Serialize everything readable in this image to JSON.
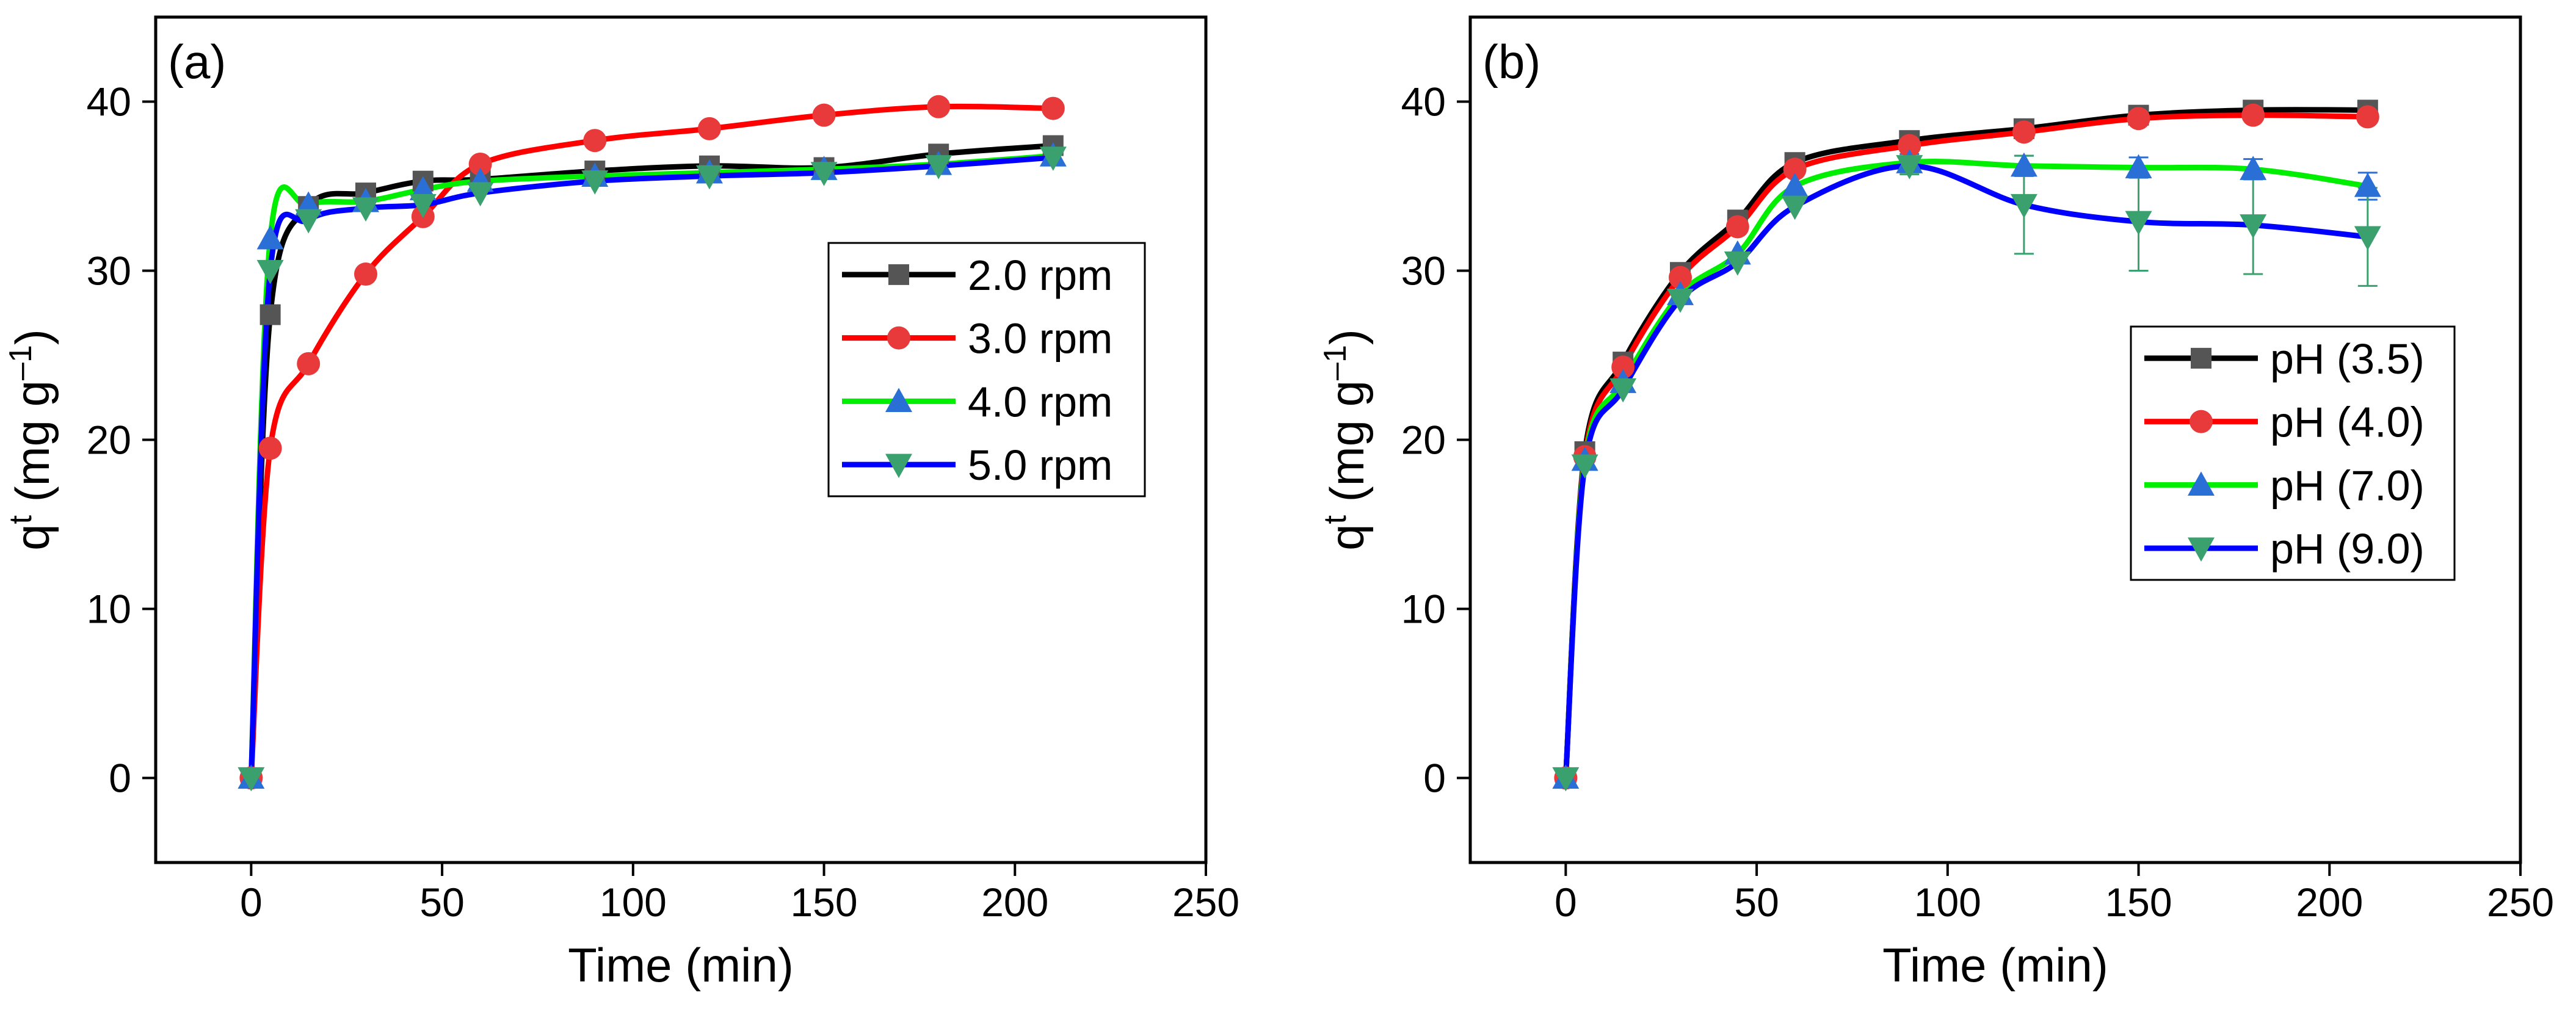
{
  "chart_data": [
    {
      "type": "line",
      "panel_label": "(a)",
      "xlabel": "Time (min)",
      "ylabel_base": "q",
      "ylabel_sup": "t",
      "ylabel_unit_prefix": " (mg g",
      "ylabel_unit_sup": "–1",
      "ylabel_unit_suffix": ")",
      "xlim": [
        -25,
        250
      ],
      "ylim": [
        -5,
        45
      ],
      "xticks": [
        0,
        50,
        100,
        150,
        200,
        250
      ],
      "yticks": [
        0,
        10,
        20,
        30,
        40
      ],
      "legend_position": "right-middle",
      "x": [
        0,
        5,
        15,
        30,
        45,
        60,
        90,
        120,
        150,
        180,
        210
      ],
      "series": [
        {
          "name": "2.0 rpm",
          "color": "#000000",
          "marker_color": "#555555",
          "marker": "square",
          "values": [
            0,
            27.4,
            33.8,
            34.6,
            35.3,
            35.4,
            35.9,
            36.2,
            36.1,
            36.9,
            37.4
          ]
        },
        {
          "name": "3.0 rpm",
          "color": "#ff0000",
          "marker_color": "#e83a3a",
          "marker": "circle",
          "values": [
            0,
            19.5,
            24.5,
            29.8,
            33.2,
            36.3,
            37.7,
            38.4,
            39.2,
            39.7,
            39.6
          ]
        },
        {
          "name": "4.0 rpm",
          "color": "#00ee00",
          "marker_color": "#2a6fd6",
          "marker": "triangle-up",
          "values": [
            0,
            31.9,
            33.9,
            34.1,
            34.8,
            35.3,
            35.6,
            35.8,
            36.0,
            36.3,
            36.8
          ]
        },
        {
          "name": "5.0 rpm",
          "color": "#0000ff",
          "marker_color": "#3aa06e",
          "marker": "triangle-down",
          "values": [
            0,
            30.0,
            33.0,
            33.7,
            33.9,
            34.6,
            35.3,
            35.6,
            35.8,
            36.2,
            36.7
          ]
        }
      ]
    },
    {
      "type": "line",
      "panel_label": "(b)",
      "xlabel": "Time (min)",
      "ylabel_base": "q",
      "ylabel_sup": "t",
      "ylabel_unit_prefix": " (mg g",
      "ylabel_unit_sup": "–1",
      "ylabel_unit_suffix": ")",
      "xlim": [
        -25,
        250
      ],
      "ylim": [
        -5,
        45
      ],
      "xticks": [
        0,
        50,
        100,
        150,
        200,
        250
      ],
      "yticks": [
        0,
        10,
        20,
        30,
        40
      ],
      "legend_position": "right-middle",
      "x": [
        0,
        5,
        15,
        30,
        45,
        60,
        90,
        120,
        150,
        180,
        210
      ],
      "series": [
        {
          "name": "pH (3.5)",
          "color": "#000000",
          "marker_color": "#555555",
          "marker": "square",
          "values": [
            0,
            19.3,
            24.6,
            29.9,
            33.0,
            36.4,
            37.7,
            38.4,
            39.2,
            39.5,
            39.5
          ]
        },
        {
          "name": "pH (4.0)",
          "color": "#ff0000",
          "marker_color": "#e83a3a",
          "marker": "circle",
          "values": [
            0,
            19.0,
            24.3,
            29.6,
            32.6,
            36.0,
            37.4,
            38.2,
            39.0,
            39.2,
            39.1
          ]
        },
        {
          "name": "pH (7.0)",
          "color": "#00ee00",
          "marker_color": "#2a6fd6",
          "marker": "triangle-up",
          "values": [
            0,
            18.8,
            23.4,
            28.6,
            31.0,
            35.0,
            36.4,
            36.2,
            36.1,
            36.0,
            35.0
          ],
          "errors": [
            0,
            0,
            0,
            0,
            0,
            0,
            0.5,
            0.6,
            0.6,
            0.6,
            0.8
          ]
        },
        {
          "name": "pH (9.0)",
          "color": "#0000ff",
          "marker_color": "#3aa06e",
          "marker": "triangle-down",
          "values": [
            0,
            18.5,
            23.0,
            28.3,
            30.5,
            33.8,
            36.2,
            33.9,
            32.9,
            32.7,
            32.0
          ],
          "errors": [
            0,
            0,
            0,
            0,
            0,
            0,
            0.5,
            2.9,
            2.9,
            2.9,
            2.9
          ]
        }
      ]
    }
  ]
}
